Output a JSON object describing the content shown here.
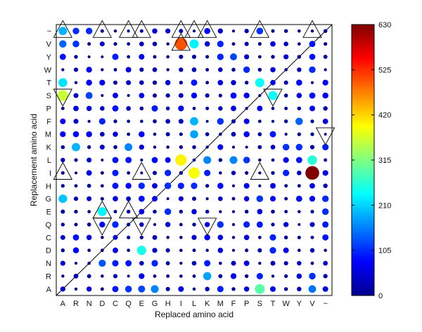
{
  "chart_data": {
    "type": "scatter",
    "xlabel": "Replaced amino acid",
    "ylabel": "Replacement amino acid",
    "x_categories": [
      "A",
      "R",
      "N",
      "D",
      "C",
      "Q",
      "E",
      "G",
      "H",
      "I",
      "L",
      "K",
      "M",
      "F",
      "P",
      "S",
      "T",
      "W",
      "Y",
      "V",
      "~"
    ],
    "y_categories": [
      "A",
      "R",
      "N",
      "D",
      "C",
      "Q",
      "E",
      "G",
      "H",
      "I",
      "L",
      "K",
      "M",
      "F",
      "P",
      "S",
      "T",
      "W",
      "Y",
      "V",
      "~"
    ],
    "colorbar": {
      "min": 0,
      "max": 630,
      "ticks": [
        0,
        105,
        210,
        315,
        420,
        525,
        630
      ],
      "colormap": "jet"
    },
    "diagonal_line": true,
    "grid": false,
    "notable_points": [
      {
        "x": "I",
        "y": "V",
        "value": 500
      },
      {
        "x": "V",
        "y": "I",
        "value": 630
      },
      {
        "x": "I",
        "y": "L",
        "value": 400
      },
      {
        "x": "L",
        "y": "I",
        "value": 390
      },
      {
        "x": "A",
        "y": "S",
        "value": 360
      },
      {
        "x": "S",
        "y": "A",
        "value": 290
      },
      {
        "x": "S",
        "y": "T",
        "value": 240
      },
      {
        "x": "T",
        "y": "S",
        "value": 240
      },
      {
        "x": "E",
        "y": "D",
        "value": 250
      },
      {
        "x": "D",
        "y": "E",
        "value": 230
      },
      {
        "x": "L",
        "y": "V",
        "value": 230
      },
      {
        "x": "V",
        "y": "L",
        "value": 260
      },
      {
        "x": "A",
        "y": "T",
        "value": 220
      },
      {
        "x": "A",
        "y": "G",
        "value": 200
      },
      {
        "x": "R",
        "y": "K",
        "value": 190
      },
      {
        "x": "K",
        "y": "R",
        "value": 180
      },
      {
        "x": "L",
        "y": "F",
        "value": 190
      },
      {
        "x": "L",
        "y": "M",
        "value": 180
      },
      {
        "x": "A",
        "y": "~",
        "value": 190
      },
      {
        "x": "Q",
        "y": "K",
        "value": 160
      },
      {
        "x": "G",
        "y": "A",
        "value": 160
      },
      {
        "x": "V",
        "y": "A",
        "value": 150
      },
      {
        "x": "K",
        "y": "L",
        "value": 160
      },
      {
        "x": "F",
        "y": "L",
        "value": 160
      },
      {
        "x": "Y",
        "y": "F",
        "value": 140
      },
      {
        "x": "A",
        "y": "V",
        "value": 140
      },
      {
        "x": "S",
        "y": "G",
        "value": 110
      },
      {
        "x": "E",
        "y": "A",
        "value": 120
      },
      {
        "x": "F",
        "y": "Y",
        "value": 120
      },
      {
        "x": "D",
        "y": "N",
        "value": 130
      },
      {
        "x": "Q",
        "y": "A",
        "value": 110
      },
      {
        "x": "N",
        "y": "S",
        "value": 120
      },
      {
        "x": "S",
        "y": "~",
        "value": 110
      }
    ],
    "triangles_up": [
      {
        "x": "A",
        "y": "~"
      },
      {
        "x": "D",
        "y": "~"
      },
      {
        "x": "Q",
        "y": "~"
      },
      {
        "x": "E",
        "y": "~"
      },
      {
        "x": "I",
        "y": "~"
      },
      {
        "x": "L",
        "y": "~"
      },
      {
        "x": "K",
        "y": "~"
      },
      {
        "x": "S",
        "y": "~"
      },
      {
        "x": "V",
        "y": "~"
      },
      {
        "x": "A",
        "y": "I"
      },
      {
        "x": "E",
        "y": "I"
      },
      {
        "x": "S",
        "y": "I"
      },
      {
        "x": "I",
        "y": "V"
      },
      {
        "x": "D",
        "y": "E"
      },
      {
        "x": "Q",
        "y": "E"
      }
    ],
    "triangles_down": [
      {
        "x": "A",
        "y": "S"
      },
      {
        "x": "T",
        "y": "S"
      },
      {
        "x": "~",
        "y": "M"
      },
      {
        "x": "D",
        "y": "Q"
      },
      {
        "x": "E",
        "y": "Q"
      },
      {
        "x": "K",
        "y": "Q"
      }
    ]
  }
}
